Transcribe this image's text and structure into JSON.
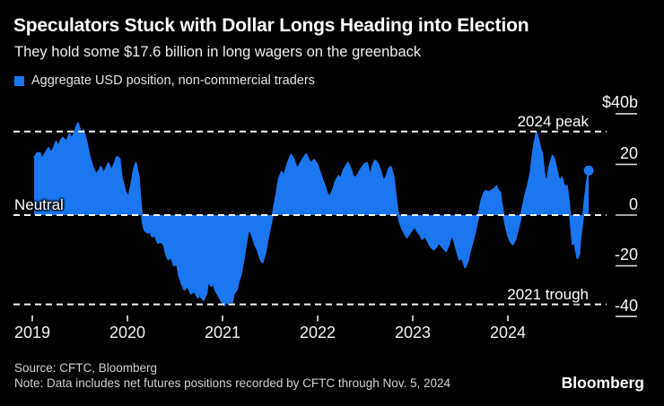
{
  "header": {
    "title": "Speculators Stuck with Dollar Longs Heading into Election",
    "subtitle": "They hold some $17.6 billion in long wagers on the greenback"
  },
  "legend": {
    "label": "Aggregate USD position, non-commercial traders",
    "swatch_color": "#1b76f0"
  },
  "footer": {
    "source": "Source: CFTC, Bloomberg",
    "note": "Note: Data includes net futures positions recorded by CFTC through Nov. 5, 2024",
    "brand": "Bloomberg"
  },
  "chart_data": {
    "type": "area",
    "title": "Aggregate USD position, non-commercial traders",
    "unit": "$ billions",
    "area_color": "#1b76f0",
    "background": "#000000",
    "grid": false,
    "legend_position": "top-left",
    "xlim": [
      2018.95,
      2025.04
    ],
    "ylim": [
      -45,
      42
    ],
    "x_ticks": [
      2019,
      2020,
      2021,
      2022,
      2023,
      2024
    ],
    "y_ticks": [
      {
        "label": "$40b",
        "value": 40
      },
      {
        "label": "20",
        "value": 20
      },
      {
        "label": "0",
        "value": 0
      },
      {
        "label": "-20",
        "value": -20
      },
      {
        "label": "-40",
        "value": -40
      }
    ],
    "reference_lines": [
      {
        "label": "2024 peak",
        "value": 33,
        "side": "right"
      },
      {
        "label": "Neutral",
        "value": 0,
        "side": "left"
      },
      {
        "label": "2021 trough",
        "value": -35.2,
        "side": "right"
      }
    ],
    "end_point": {
      "x": 2024.85,
      "value": 17.6,
      "marker": "circle"
    },
    "points": [
      [
        2019.02,
        22.5
      ],
      [
        2019.05,
        24.5
      ],
      [
        2019.08,
        24.5
      ],
      [
        2019.1,
        22
      ],
      [
        2019.13,
        24
      ],
      [
        2019.17,
        26.5
      ],
      [
        2019.2,
        24.5
      ],
      [
        2019.23,
        27
      ],
      [
        2019.25,
        29
      ],
      [
        2019.27,
        27
      ],
      [
        2019.3,
        29.5
      ],
      [
        2019.32,
        30.5
      ],
      [
        2019.36,
        29
      ],
      [
        2019.39,
        32
      ],
      [
        2019.42,
        30
      ],
      [
        2019.45,
        33.5
      ],
      [
        2019.48,
        36.3
      ],
      [
        2019.51,
        32.5
      ],
      [
        2019.54,
        33.5
      ],
      [
        2019.57,
        29
      ],
      [
        2019.6,
        23.5
      ],
      [
        2019.64,
        18.5
      ],
      [
        2019.67,
        16
      ],
      [
        2019.7,
        17.5
      ],
      [
        2019.72,
        19
      ],
      [
        2019.75,
        16.5
      ],
      [
        2019.77,
        18
      ],
      [
        2019.8,
        20.5
      ],
      [
        2019.83,
        17.5
      ],
      [
        2019.86,
        20
      ],
      [
        2019.89,
        23
      ],
      [
        2019.92,
        22
      ],
      [
        2019.94,
        15
      ],
      [
        2019.98,
        9
      ],
      [
        2020.01,
        7
      ],
      [
        2020.04,
        12
      ],
      [
        2020.07,
        18.5
      ],
      [
        2020.09,
        20.5
      ],
      [
        2020.12,
        15
      ],
      [
        2020.14,
        5
      ],
      [
        2020.16,
        -3
      ],
      [
        2020.18,
        -6
      ],
      [
        2020.21,
        -7
      ],
      [
        2020.24,
        -6.5
      ],
      [
        2020.26,
        -8.5
      ],
      [
        2020.29,
        -8
      ],
      [
        2020.32,
        -11
      ],
      [
        2020.35,
        -10.5
      ],
      [
        2020.38,
        -11.5
      ],
      [
        2020.41,
        -16
      ],
      [
        2020.43,
        -17.5
      ],
      [
        2020.46,
        -16.5
      ],
      [
        2020.49,
        -20
      ],
      [
        2020.52,
        -19
      ],
      [
        2020.54,
        -23.5
      ],
      [
        2020.57,
        -27
      ],
      [
        2020.6,
        -29.5
      ],
      [
        2020.63,
        -28
      ],
      [
        2020.67,
        -31
      ],
      [
        2020.7,
        -30
      ],
      [
        2020.74,
        -32.5
      ],
      [
        2020.76,
        -31.5
      ],
      [
        2020.8,
        -33.5
      ],
      [
        2020.83,
        -31
      ],
      [
        2020.85,
        -26
      ],
      [
        2020.88,
        -28
      ],
      [
        2020.9,
        -27
      ],
      [
        2020.93,
        -30
      ],
      [
        2020.96,
        -32
      ],
      [
        2020.99,
        -34
      ],
      [
        2021.02,
        -35.6
      ],
      [
        2021.04,
        -34
      ],
      [
        2021.06,
        -35
      ],
      [
        2021.08,
        -33.5
      ],
      [
        2021.1,
        -34.5
      ],
      [
        2021.12,
        -31
      ],
      [
        2021.15,
        -29.5
      ],
      [
        2021.17,
        -26
      ],
      [
        2021.19,
        -24
      ],
      [
        2021.22,
        -18
      ],
      [
        2021.25,
        -11
      ],
      [
        2021.27,
        -6.5
      ],
      [
        2021.29,
        -6
      ],
      [
        2021.31,
        -8
      ],
      [
        2021.34,
        -11.5
      ],
      [
        2021.37,
        -14
      ],
      [
        2021.4,
        -17.5
      ],
      [
        2021.42,
        -18.7
      ],
      [
        2021.45,
        -15
      ],
      [
        2021.47,
        -10.5
      ],
      [
        2021.5,
        -5
      ],
      [
        2021.52,
        -1.5
      ],
      [
        2021.54,
        3
      ],
      [
        2021.57,
        9
      ],
      [
        2021.59,
        14
      ],
      [
        2021.62,
        17
      ],
      [
        2021.65,
        15.5
      ],
      [
        2021.68,
        20
      ],
      [
        2021.72,
        23.8
      ],
      [
        2021.75,
        22
      ],
      [
        2021.77,
        19.5
      ],
      [
        2021.79,
        18.3
      ],
      [
        2021.82,
        20.5
      ],
      [
        2021.85,
        22.5
      ],
      [
        2021.88,
        24
      ],
      [
        2021.91,
        21.5
      ],
      [
        2021.93,
        20.3
      ],
      [
        2021.96,
        21.8
      ],
      [
        2021.99,
        20.5
      ],
      [
        2022.02,
        17.5
      ],
      [
        2022.05,
        14
      ],
      [
        2022.08,
        11
      ],
      [
        2022.1,
        8.5
      ],
      [
        2022.13,
        7.2
      ],
      [
        2022.16,
        10
      ],
      [
        2022.19,
        13.5
      ],
      [
        2022.22,
        15.5
      ],
      [
        2022.24,
        14
      ],
      [
        2022.26,
        16.5
      ],
      [
        2022.29,
        19
      ],
      [
        2022.32,
        20.6
      ],
      [
        2022.35,
        18
      ],
      [
        2022.37,
        15.5
      ],
      [
        2022.4,
        14.6
      ],
      [
        2022.43,
        16.5
      ],
      [
        2022.46,
        18.5
      ],
      [
        2022.49,
        20
      ],
      [
        2022.52,
        20.6
      ],
      [
        2022.55,
        15.5
      ],
      [
        2022.58,
        19.5
      ],
      [
        2022.6,
        21.5
      ],
      [
        2022.63,
        20.5
      ],
      [
        2022.66,
        17.5
      ],
      [
        2022.69,
        13.5
      ],
      [
        2022.72,
        15
      ],
      [
        2022.75,
        18.5
      ],
      [
        2022.77,
        19
      ],
      [
        2022.8,
        15
      ],
      [
        2022.82,
        8
      ],
      [
        2022.84,
        2
      ],
      [
        2022.86,
        -2.5
      ],
      [
        2022.89,
        -5.5
      ],
      [
        2022.92,
        -7.5
      ],
      [
        2022.94,
        -8.8
      ],
      [
        2022.97,
        -7
      ],
      [
        2023.0,
        -5.5
      ],
      [
        2023.02,
        -4.6
      ],
      [
        2023.05,
        -6.5
      ],
      [
        2023.08,
        -8
      ],
      [
        2023.1,
        -9.5
      ],
      [
        2023.13,
        -8.2
      ],
      [
        2023.16,
        -10.5
      ],
      [
        2023.19,
        -12.5
      ],
      [
        2023.22,
        -13.6
      ],
      [
        2023.25,
        -12.5
      ],
      [
        2023.27,
        -10.8
      ],
      [
        2023.3,
        -12
      ],
      [
        2023.33,
        -13.5
      ],
      [
        2023.35,
        -14.2
      ],
      [
        2023.38,
        -11.5
      ],
      [
        2023.41,
        -7.5
      ],
      [
        2023.43,
        -9.5
      ],
      [
        2023.46,
        -13.5
      ],
      [
        2023.49,
        -17.5
      ],
      [
        2023.52,
        -17
      ],
      [
        2023.55,
        -20.6
      ],
      [
        2023.58,
        -18
      ],
      [
        2023.6,
        -14.5
      ],
      [
        2023.63,
        -10.5
      ],
      [
        2023.66,
        -6
      ],
      [
        2023.69,
        -0.5
      ],
      [
        2023.72,
        5.5
      ],
      [
        2023.75,
        9
      ],
      [
        2023.77,
        9.6
      ],
      [
        2023.8,
        9
      ],
      [
        2023.83,
        9.8
      ],
      [
        2023.86,
        10.5
      ],
      [
        2023.88,
        11.4
      ],
      [
        2023.9,
        9.6
      ],
      [
        2023.92,
        9
      ],
      [
        2023.93,
        5.5
      ],
      [
        2023.95,
        1
      ],
      [
        2023.97,
        -3
      ],
      [
        2024.0,
        -8
      ],
      [
        2024.03,
        -10.5
      ],
      [
        2024.05,
        -11.6
      ],
      [
        2024.08,
        -9.5
      ],
      [
        2024.1,
        -6.5
      ],
      [
        2024.13,
        -2
      ],
      [
        2024.15,
        2
      ],
      [
        2024.18,
        7.5
      ],
      [
        2024.21,
        12
      ],
      [
        2024.24,
        17
      ],
      [
        2024.26,
        24
      ],
      [
        2024.28,
        28.5
      ],
      [
        2024.3,
        32.6
      ],
      [
        2024.32,
        30
      ],
      [
        2024.34,
        26.5
      ],
      [
        2024.36,
        24.5
      ],
      [
        2024.38,
        17
      ],
      [
        2024.4,
        12.8
      ],
      [
        2024.42,
        15
      ],
      [
        2024.43,
        18.5
      ],
      [
        2024.45,
        21
      ],
      [
        2024.47,
        23.4
      ],
      [
        2024.49,
        22
      ],
      [
        2024.51,
        18.5
      ],
      [
        2024.53,
        15
      ],
      [
        2024.55,
        13.4
      ],
      [
        2024.57,
        14.8
      ],
      [
        2024.58,
        13
      ],
      [
        2024.6,
        10.8
      ],
      [
        2024.62,
        11.6
      ],
      [
        2024.64,
        6
      ],
      [
        2024.66,
        -3
      ],
      [
        2024.68,
        -11.5
      ],
      [
        2024.7,
        -9.8
      ],
      [
        2024.71,
        -13
      ],
      [
        2024.73,
        -17
      ],
      [
        2024.75,
        -15.5
      ],
      [
        2024.76,
        -10
      ],
      [
        2024.79,
        -1
      ],
      [
        2024.81,
        7
      ],
      [
        2024.83,
        13
      ],
      [
        2024.85,
        17.6
      ]
    ]
  }
}
